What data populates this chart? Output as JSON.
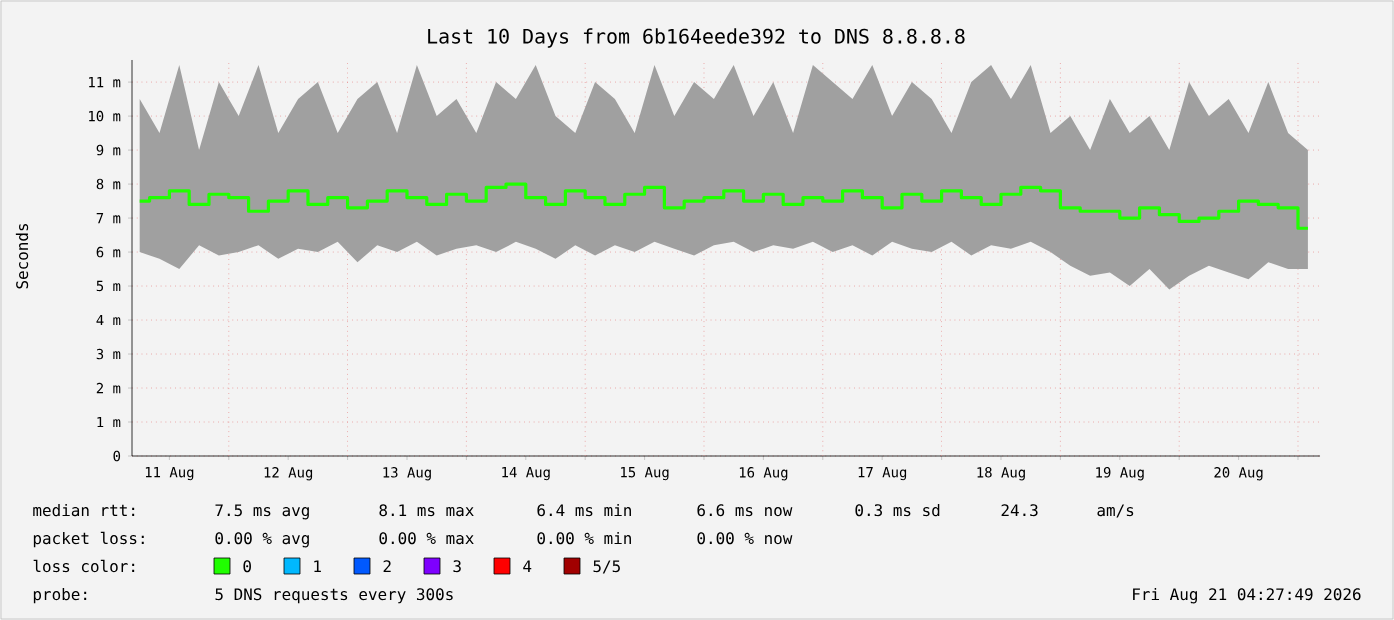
{
  "chart_data": {
    "type": "step",
    "title": "Last 10 Days from 6b164eede392 to DNS 8.8.8.8",
    "ylabel": "Seconds",
    "x": [
      "2026-08-11T06:00",
      "2026-08-11T10:00",
      "2026-08-11T14:00",
      "2026-08-11T18:00",
      "2026-08-11T22:00",
      "2026-08-12T02:00",
      "2026-08-12T06:00",
      "2026-08-12T10:00",
      "2026-08-12T14:00",
      "2026-08-12T18:00",
      "2026-08-12T22:00",
      "2026-08-13T02:00",
      "2026-08-13T06:00",
      "2026-08-13T10:00",
      "2026-08-13T14:00",
      "2026-08-13T18:00",
      "2026-08-13T22:00",
      "2026-08-14T02:00",
      "2026-08-14T06:00",
      "2026-08-14T10:00",
      "2026-08-14T14:00",
      "2026-08-14T18:00",
      "2026-08-14T22:00",
      "2026-08-15T02:00",
      "2026-08-15T06:00",
      "2026-08-15T10:00",
      "2026-08-15T14:00",
      "2026-08-15T18:00",
      "2026-08-15T22:00",
      "2026-08-16T02:00",
      "2026-08-16T06:00",
      "2026-08-16T10:00",
      "2026-08-16T14:00",
      "2026-08-16T18:00",
      "2026-08-16T22:00",
      "2026-08-17T02:00",
      "2026-08-17T06:00",
      "2026-08-17T10:00",
      "2026-08-17T14:00",
      "2026-08-17T18:00",
      "2026-08-17T22:00",
      "2026-08-18T02:00",
      "2026-08-18T06:00",
      "2026-08-18T10:00",
      "2026-08-18T14:00",
      "2026-08-18T18:00",
      "2026-08-18T22:00",
      "2026-08-19T02:00",
      "2026-08-19T06:00",
      "2026-08-19T10:00",
      "2026-08-19T14:00",
      "2026-08-19T18:00",
      "2026-08-19T22:00",
      "2026-08-20T02:00",
      "2026-08-20T06:00",
      "2026-08-20T10:00",
      "2026-08-20T14:00",
      "2026-08-20T18:00",
      "2026-08-20T22:00",
      "2026-08-21T02:00"
    ],
    "series": [
      {
        "name": "0",
        "color": "#20ff00",
        "values": [
          7.5,
          7.6,
          7.8,
          7.4,
          7.7,
          7.6,
          7.2,
          7.5,
          7.8,
          7.4,
          7.6,
          7.3,
          7.5,
          7.8,
          7.6,
          7.4,
          7.7,
          7.5,
          7.9,
          8.0,
          7.6,
          7.4,
          7.8,
          7.6,
          7.4,
          7.7,
          7.9,
          7.3,
          7.5,
          7.6,
          7.8,
          7.5,
          7.7,
          7.4,
          7.6,
          7.5,
          7.8,
          7.6,
          7.3,
          7.7,
          7.5,
          7.8,
          7.6,
          7.4,
          7.7,
          7.9,
          7.8,
          7.3,
          7.2,
          7.2,
          7.0,
          7.3,
          7.1,
          6.9,
          7.0,
          7.2,
          7.5,
          7.4,
          7.3,
          6.7
        ],
        "upper": [
          10.5,
          9.5,
          11.5,
          9.0,
          11.0,
          10.0,
          11.5,
          9.5,
          10.5,
          11.0,
          9.5,
          10.5,
          11.0,
          9.5,
          11.5,
          10.0,
          10.5,
          9.5,
          11.0,
          10.5,
          11.5,
          10.0,
          9.5,
          11.0,
          10.5,
          9.5,
          11.5,
          10.0,
          11.0,
          10.5,
          11.5,
          10.0,
          11.0,
          9.5,
          11.5,
          11.0,
          10.5,
          11.5,
          10.0,
          11.0,
          10.5,
          9.5,
          11.0,
          11.5,
          10.5,
          11.5,
          9.5,
          10.0,
          9.0,
          10.5,
          9.5,
          10.0,
          9.0,
          11.0,
          10.0,
          10.5,
          9.5,
          11.0,
          9.5,
          9.0
        ],
        "lower": [
          6.0,
          5.8,
          5.5,
          6.2,
          5.9,
          6.0,
          6.2,
          5.8,
          6.1,
          6.0,
          6.3,
          5.7,
          6.2,
          6.0,
          6.3,
          5.9,
          6.1,
          6.2,
          6.0,
          6.3,
          6.1,
          5.8,
          6.2,
          5.9,
          6.2,
          6.0,
          6.3,
          6.1,
          5.9,
          6.2,
          6.3,
          6.0,
          6.2,
          6.1,
          6.3,
          6.0,
          6.2,
          5.9,
          6.3,
          6.1,
          6.0,
          6.3,
          5.9,
          6.2,
          6.1,
          6.3,
          6.0,
          5.6,
          5.3,
          5.4,
          5.0,
          5.5,
          4.9,
          5.3,
          5.6,
          5.4,
          5.2,
          5.7,
          5.5,
          5.5
        ]
      },
      {
        "name": "1",
        "color": "#00b8ff",
        "values": [
          null,
          null,
          null,
          null,
          null,
          null,
          null,
          null,
          null,
          null,
          null,
          null,
          null,
          null,
          null,
          null,
          null,
          null,
          null,
          null,
          null,
          null,
          null,
          null,
          null,
          null,
          null,
          null,
          null,
          null,
          null,
          null,
          null,
          null,
          null,
          null,
          null,
          null,
          null,
          null,
          null,
          null,
          null,
          null,
          null,
          null,
          null,
          null,
          null,
          null,
          null,
          null,
          null,
          null,
          null,
          null,
          null,
          null,
          null,
          null
        ]
      },
      {
        "name": "2",
        "color": "#0059ff",
        "values": [
          null,
          null,
          null,
          null,
          null,
          null,
          null,
          null,
          null,
          null,
          null,
          null,
          null,
          null,
          null,
          null,
          null,
          null,
          null,
          null,
          null,
          null,
          null,
          null,
          null,
          null,
          null,
          null,
          null,
          null,
          null,
          null,
          null,
          null,
          null,
          null,
          null,
          null,
          null,
          null,
          null,
          null,
          null,
          null,
          null,
          null,
          null,
          null,
          null,
          null,
          null,
          null,
          null,
          null,
          null,
          null,
          null,
          null,
          null,
          null
        ]
      },
      {
        "name": "3",
        "color": "#7e00ff",
        "values": [
          null,
          null,
          null,
          null,
          null,
          null,
          null,
          null,
          null,
          null,
          null,
          null,
          null,
          null,
          null,
          null,
          null,
          null,
          null,
          null,
          null,
          null,
          null,
          null,
          null,
          null,
          null,
          null,
          null,
          null,
          null,
          null,
          null,
          null,
          null,
          null,
          null,
          null,
          null,
          null,
          null,
          null,
          null,
          null,
          null,
          null,
          null,
          null,
          null,
          null,
          null,
          null,
          null,
          null,
          null,
          null,
          null,
          null,
          null,
          null
        ]
      },
      {
        "name": "4",
        "color": "#ff0000",
        "values": [
          null,
          null,
          null,
          null,
          null,
          null,
          null,
          null,
          null,
          null,
          null,
          null,
          null,
          null,
          null,
          null,
          null,
          null,
          null,
          null,
          null,
          null,
          null,
          null,
          null,
          null,
          null,
          null,
          null,
          null,
          null,
          null,
          null,
          null,
          null,
          null,
          null,
          null,
          null,
          null,
          null,
          null,
          null,
          null,
          null,
          null,
          null,
          null,
          null,
          null,
          null,
          null,
          null,
          null,
          null,
          null,
          null,
          null,
          null,
          null
        ]
      },
      {
        "name": "5/5",
        "color": "#a10000",
        "values": [
          null,
          null,
          null,
          null,
          null,
          null,
          null,
          null,
          null,
          null,
          null,
          null,
          null,
          null,
          null,
          null,
          null,
          null,
          null,
          null,
          null,
          null,
          null,
          null,
          null,
          null,
          null,
          null,
          null,
          null,
          null,
          null,
          null,
          null,
          null,
          null,
          null,
          null,
          null,
          null,
          null,
          null,
          null,
          null,
          null,
          null,
          null,
          null,
          null,
          null,
          null,
          null,
          null,
          null,
          null,
          null,
          null,
          null,
          null,
          null
        ]
      }
    ],
    "xlim": [
      "2026-08-11T04:27",
      "2026-08-21T04:27"
    ],
    "xticks": [
      {
        "value": "2026-08-11T12:00",
        "label": "11 Aug"
      },
      {
        "value": "2026-08-12T00:00",
        "label": null
      },
      {
        "value": "2026-08-12T12:00",
        "label": "12 Aug"
      },
      {
        "value": "2026-08-13T00:00",
        "label": null
      },
      {
        "value": "2026-08-13T12:00",
        "label": "13 Aug"
      },
      {
        "value": "2026-08-14T00:00",
        "label": null
      },
      {
        "value": "2026-08-14T12:00",
        "label": "14 Aug"
      },
      {
        "value": "2026-08-15T00:00",
        "label": null
      },
      {
        "value": "2026-08-15T12:00",
        "label": "15 Aug"
      },
      {
        "value": "2026-08-16T00:00",
        "label": null
      },
      {
        "value": "2026-08-16T12:00",
        "label": "16 Aug"
      },
      {
        "value": "2026-08-17T00:00",
        "label": null
      },
      {
        "value": "2026-08-17T12:00",
        "label": "17 Aug"
      },
      {
        "value": "2026-08-18T00:00",
        "label": null
      },
      {
        "value": "2026-08-18T12:00",
        "label": "18 Aug"
      },
      {
        "value": "2026-08-19T00:00",
        "label": null
      },
      {
        "value": "2026-08-19T12:00",
        "label": "19 Aug"
      },
      {
        "value": "2026-08-20T00:00",
        "label": null
      },
      {
        "value": "2026-08-20T12:00",
        "label": "20 Aug"
      },
      {
        "value": "2026-08-21T00:00",
        "label": null
      }
    ],
    "ylim": [
      0,
      11.65
    ],
    "yticks": [
      0,
      {
        "value": 1,
        "label": "1 m"
      },
      {
        "value": 2,
        "label": "2 m"
      },
      {
        "value": 3,
        "label": "3 m"
      },
      {
        "value": 4,
        "label": "4 m"
      },
      {
        "value": 5,
        "label": "5 m"
      },
      {
        "value": 6,
        "label": "6 m"
      },
      {
        "value": 7,
        "label": "7 m"
      },
      {
        "value": 8,
        "label": "8 m"
      },
      {
        "value": 9,
        "label": "9 m"
      },
      {
        "value": 10,
        "label": "10 m"
      },
      {
        "value": 11,
        "label": "11 m"
      }
    ],
    "grid": true,
    "legend": "bottom left",
    "legend_title": "loss color:",
    "annotations": [
      "median rtt:",
      "7.5 ms avg",
      "8.1 ms max",
      "6.4 ms min",
      "6.6 ms now",
      "0.3 ms sd",
      "24.3",
      "am/s",
      "packet loss:",
      "0.00 % avg",
      "0.00 % max",
      "0.00 % min",
      "0.00 % now",
      "probe:",
      "5 DNS requests every 300s",
      "Fri Aug 21 04:27:49 2026"
    ]
  }
}
